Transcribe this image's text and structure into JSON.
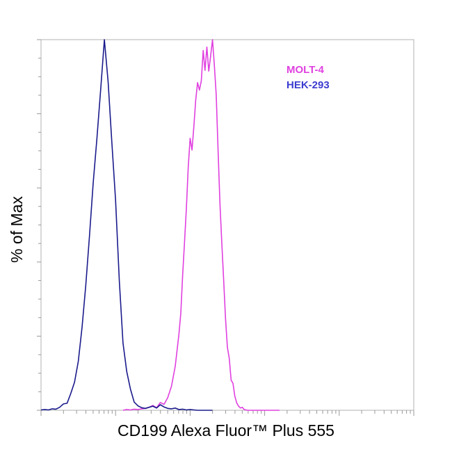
{
  "chart_data": {
    "type": "line",
    "title": "",
    "xlabel": "CD199 Alexa Fluor™ Plus 555",
    "ylabel": "% of Max",
    "xscale": "log",
    "xlim": [
      0,
      100
    ],
    "ylim": [
      0,
      100
    ],
    "grid": false,
    "legend_position": "top-right",
    "series": [
      {
        "name": "MOLT-4",
        "color": "#e040e0",
        "x": [
          22,
          23,
          24,
          25,
          26,
          27,
          28,
          29,
          30,
          31,
          32,
          33,
          34,
          35,
          36,
          37,
          37.5,
          38,
          38.5,
          39,
          39.5,
          40,
          40.5,
          41,
          41.5,
          42,
          42.5,
          43,
          43.5,
          44,
          44.5,
          45,
          45.5,
          46,
          46.5,
          47,
          47.5,
          48,
          48.5,
          49,
          49.5,
          50,
          50.5,
          51,
          51.5,
          52,
          52.5,
          53,
          53.5,
          54,
          54.5,
          55,
          55.5,
          56,
          56.5,
          57,
          57.5,
          58,
          58.5,
          59,
          59.5,
          60,
          61,
          62,
          63,
          64
        ],
        "values": [
          0,
          0.2,
          0.1,
          0.3,
          0.2,
          0.4,
          0.5,
          0.8,
          1.3,
          0.7,
          2.1,
          1.6,
          3.4,
          6.5,
          11.9,
          20.5,
          26.2,
          36.6,
          45.5,
          54.4,
          65.6,
          73.4,
          70.2,
          76.6,
          83.6,
          88.4,
          86.4,
          88.9,
          97.1,
          91.7,
          98.0,
          91.5,
          95.6,
          100,
          93.2,
          85.2,
          70.2,
          55.8,
          45.0,
          35.3,
          24.8,
          17.0,
          14.0,
          8.1,
          7.3,
          3.8,
          2.0,
          1.1,
          0.6,
          0.8,
          0.2,
          0.1,
          0,
          0,
          0,
          0,
          0,
          0,
          0,
          0,
          0,
          0,
          0,
          0,
          0,
          0
        ]
      },
      {
        "name": "HEK-293",
        "color": "#1a1a8c",
        "x": [
          0,
          1,
          2,
          3,
          4,
          5,
          6,
          7,
          8,
          9,
          10,
          11,
          12,
          13,
          14,
          15,
          16,
          17,
          18,
          19,
          20,
          21,
          22,
          23,
          24,
          25,
          26,
          27,
          28,
          29,
          30,
          31,
          32,
          33,
          34,
          35,
          36,
          37,
          38,
          39,
          40,
          41,
          42,
          43,
          44,
          45,
          46
        ],
        "values": [
          0.1,
          0.2,
          0.1,
          0.4,
          0.3,
          0.8,
          1.7,
          1.9,
          4.6,
          7.6,
          13.2,
          22.4,
          33.6,
          47.1,
          61.3,
          73.4,
          86.6,
          100,
          88.6,
          72.4,
          56.7,
          34.9,
          18.1,
          10.4,
          5.7,
          2.2,
          1.2,
          0.7,
          0.5,
          0.8,
          1.1,
          0.6,
          1.5,
          0.9,
          0.5,
          0.4,
          0.6,
          0.2,
          0.3,
          0.1,
          0.2,
          0.1,
          0,
          0,
          0,
          0,
          0
        ]
      }
    ]
  },
  "labels": {
    "ylabel": "% of Max",
    "xlabel": "CD199 Alexa Fluor™ Plus 555",
    "legend": [
      "MOLT-4",
      "HEK-293"
    ]
  },
  "colors": {
    "molt4": "#e040e0",
    "hek293": "#1a1a8c",
    "hek293_legend": "#3c3cd0",
    "axis": "#999999"
  }
}
